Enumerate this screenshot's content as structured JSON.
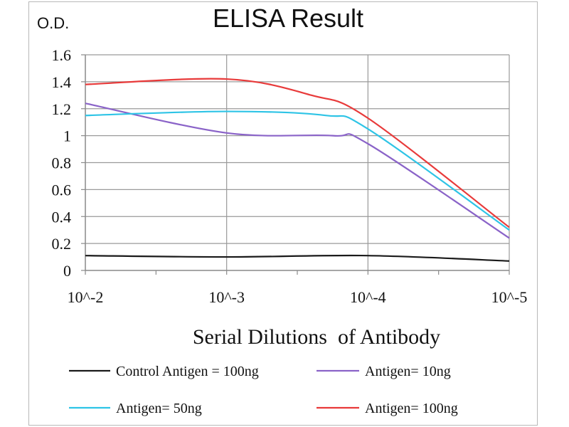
{
  "chart_data": {
    "type": "line",
    "title": "ELISA Result",
    "ylabel": "O.D.",
    "xlabel": "Serial Dilutions  of Antibody",
    "categories": [
      "10^-2",
      "10^-3",
      "10^-4",
      "10^-5"
    ],
    "ylim": [
      0,
      1.6
    ],
    "yticks": [
      "0",
      "0.2",
      "0.4",
      "0.6",
      "0.8",
      "1",
      "1.2",
      "1.4",
      "1.6"
    ],
    "grid": true,
    "legend_position": "bottom",
    "series": [
      {
        "name": "Control Antigen = 100ng",
        "color": "#1a1a1a",
        "points": [
          [
            0,
            0.11
          ],
          [
            1,
            0.1
          ],
          [
            2,
            0.11
          ],
          [
            3,
            0.07
          ]
        ]
      },
      {
        "name": "Antigen= 10ng",
        "color": "#8a63c8",
        "points": [
          [
            0,
            1.24
          ],
          [
            1,
            1.02
          ],
          [
            1.75,
            1.0
          ],
          [
            2,
            0.94
          ],
          [
            3,
            0.24
          ]
        ]
      },
      {
        "name": "Antigen= 50ng",
        "color": "#2ec4e6",
        "points": [
          [
            0,
            1.15
          ],
          [
            1,
            1.18
          ],
          [
            1.7,
            1.15
          ],
          [
            2,
            1.05
          ],
          [
            3,
            0.3
          ]
        ]
      },
      {
        "name": "Antigen= 100ng",
        "color": "#e83a3a",
        "points": [
          [
            0,
            1.38
          ],
          [
            1,
            1.42
          ],
          [
            1.6,
            1.3
          ],
          [
            2,
            1.13
          ],
          [
            3,
            0.32
          ]
        ]
      }
    ]
  }
}
